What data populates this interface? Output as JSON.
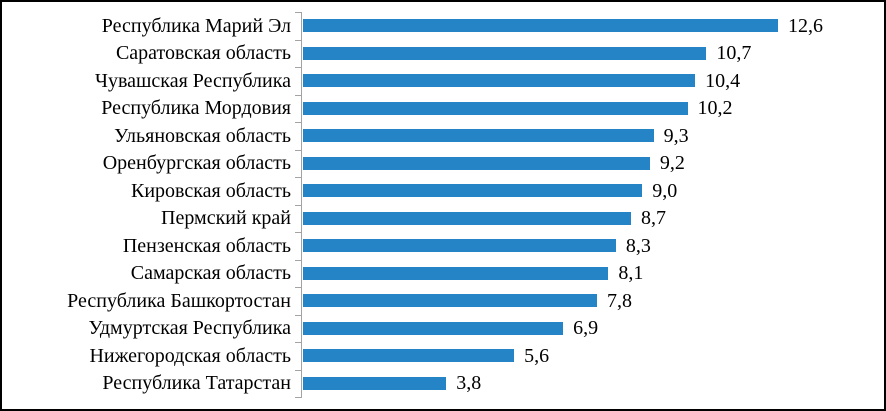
{
  "chart_data": {
    "type": "bar",
    "orientation": "horizontal",
    "title": "",
    "xlabel": "",
    "ylabel": "",
    "grid": false,
    "legend": false,
    "xlim": [
      0,
      14
    ],
    "categories": [
      "Республика Марий Эл",
      "Саратовская область",
      "Чувашская Республика",
      "Республика Мордовия",
      "Ульяновская область",
      "Оренбургская область",
      "Кировская область",
      "Пермский край",
      "Пензенская область",
      "Самарская область",
      "Республика Башкортостан",
      "Удмуртская Республика",
      "Нижегородская область",
      "Республика Татарстан"
    ],
    "values": [
      12.6,
      10.7,
      10.4,
      10.2,
      9.3,
      9.2,
      9.0,
      8.7,
      8.3,
      8.1,
      7.8,
      6.9,
      5.6,
      3.8
    ],
    "display_values": [
      "12,6",
      "10,7",
      "10,4",
      "10,2",
      "9,3",
      "9,2",
      "9,0",
      "8,7",
      "8,3",
      "8,1",
      "7,8",
      "6,9",
      "5,6",
      "3,8"
    ],
    "value_labels_position": "end-of-bar",
    "bar_color": "#2484C6",
    "axis_color": "#A3A3A3",
    "text_color": "#000000"
  },
  "frame": {
    "background": "#FFFFFF",
    "border_color": "#000000"
  }
}
